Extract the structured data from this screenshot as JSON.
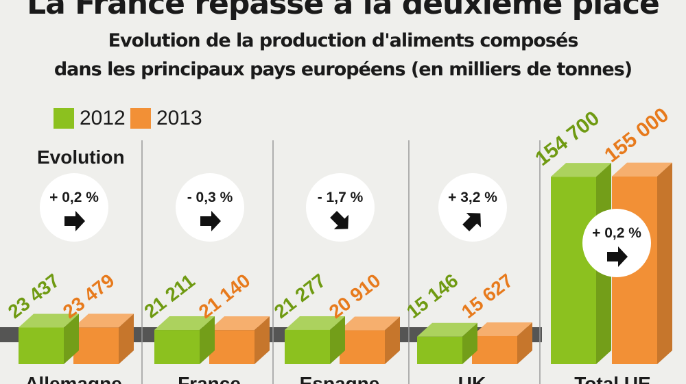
{
  "header": {
    "title": "La France repasse à la deuxième place",
    "subtitle_line1": "Evolution de la production d'aliments composés",
    "subtitle_line2": "dans les principaux pays européens (en milliers de tonnes)"
  },
  "evolution_label": "Evolution",
  "colors": {
    "y2012": "#8cc11f",
    "y2013": "#f29036",
    "text2012": "#6f9a12",
    "text2013": "#e77a1c"
  },
  "chart_data": {
    "type": "bar",
    "categories": [
      "Allemagne",
      "France",
      "Espagne",
      "UK",
      "Total UE"
    ],
    "series": [
      {
        "name": "2012",
        "values": [
          23437,
          21211,
          21277,
          15146,
          154700
        ],
        "labels": [
          "23 437",
          "21 211",
          "21 277",
          "15 146",
          "154 700"
        ]
      },
      {
        "name": "2013",
        "values": [
          23479,
          21140,
          20910,
          15627,
          155000
        ],
        "labels": [
          "23 479",
          "21 140",
          "20 910",
          "15 627",
          "155 000"
        ]
      }
    ],
    "evolution": [
      "+ 0,2 %",
      "- 0,3 %",
      "- 1,7 %",
      "+ 3,2 %",
      "+ 0,2 %"
    ],
    "evolution_arrow": [
      "flat",
      "flat",
      "down",
      "up",
      "flat"
    ],
    "legend_position": "top-left",
    "grid": false
  }
}
